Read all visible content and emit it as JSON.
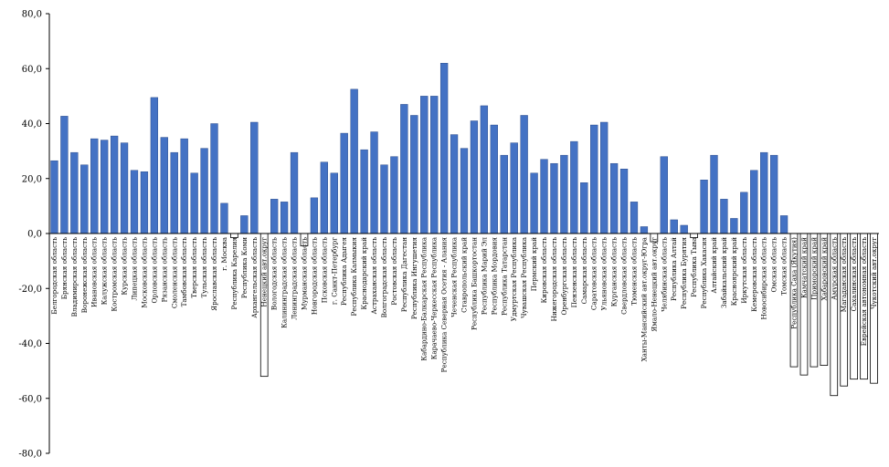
{
  "chart_data": {
    "type": "bar",
    "title": "",
    "xlabel": "",
    "ylabel": "",
    "ylim": [
      -80,
      80
    ],
    "yticks": [
      "80,0",
      "60,0",
      "40,0",
      "20,0",
      "0,0",
      "-20,0",
      "-40,0",
      "-60,0",
      "-80,0"
    ],
    "ytick_values": [
      80,
      60,
      40,
      20,
      0,
      -20,
      -40,
      -60,
      -80
    ],
    "grid": false,
    "bar_color": "#4472C4",
    "bar_border_color": "#1F3D7A",
    "categories": [
      "Белгородская область",
      "Брянская область",
      "Владимирская область",
      "Воронежская область",
      "Ивановская область",
      "Калужская область",
      "Костромская область",
      "Курская область",
      "Липецкая область",
      "Московская область",
      "Орловская область",
      "Рязанская область",
      "Смоленская область",
      "Тамбовская область",
      "Тверская область",
      "Тульская область",
      "Ярославская область",
      "г. Москва",
      "Республика Карелия",
      "Республика Коми",
      "Архангельская область",
      "Ненецкий авт.округ",
      "Вологодская область",
      "Калининградская область",
      "Ленинградская область",
      "Мурманская область",
      "Новгородская область",
      "Псковская область",
      "г. Санкт-Петербург",
      "Республика Адыгея",
      "Республика Калмыкия",
      "Краснодарский край",
      "Астраханская область",
      "Волгоградская область",
      "Ростовская область",
      "Республика Дагестан",
      "Республика Ингушетия",
      "Кабардино-Балкарская Республика",
      "Карачаево-Черкесская Республика",
      "Республика Северная Осетия - Алания",
      "Чеченская Республика",
      "Ставропольский край",
      "Республика Башкортостан",
      "Республика Марий Эл",
      "Республика Мордовия",
      "Республика Татарстан",
      "Удмуртская Республика",
      "Чувашская Республика",
      "Пермский край",
      "Кировская область",
      "Нижегородская область",
      "Оренбургская область",
      "Пензенская область",
      "Самарская область",
      "Саратовская область",
      "Ульяновская область",
      "Курганская область",
      "Свердловская область",
      "Тюменская область",
      "Ханты-Мансийский авт.округ-Югра",
      "Ямало-Ненецкий авт.округ",
      "Челябинская область",
      "Республика Алтай",
      "Республика Бурятия",
      "Республика Тыва",
      "Республика Хакасия",
      "Алтайский край",
      "Забайкальский край",
      "Красноярский край",
      "Иркутская область",
      "Кемеровская область",
      "Новосибирская область",
      "Омская область",
      "Томская область",
      "Республика Саха (Якутия)",
      "Камчатский край",
      "Приморский край",
      "Хабаровский край",
      "Амурская область",
      "Магаданская область",
      "Сахалинская область",
      "Еврейская автономная область",
      "Чукотский авт.округ"
    ],
    "values": [
      26.5,
      42.7,
      29.5,
      25.0,
      34.5,
      34.0,
      35.5,
      33.0,
      23.0,
      22.5,
      49.5,
      35.0,
      29.5,
      34.5,
      22.0,
      31.0,
      40.0,
      11.0,
      -1.5,
      6.5,
      40.5,
      -52.0,
      12.5,
      11.5,
      29.5,
      -4.5,
      13.0,
      26.0,
      22.0,
      36.5,
      52.5,
      30.5,
      37.0,
      25.0,
      28.0,
      47.0,
      43.0,
      50.0,
      50.0,
      62.0,
      36.0,
      31.0,
      41.0,
      46.5,
      39.5,
      28.5,
      33.0,
      43.0,
      22.0,
      27.0,
      25.5,
      28.5,
      33.5,
      18.5,
      39.5,
      40.5,
      25.5,
      23.5,
      11.5,
      2.5,
      -3.0,
      28.0,
      5.0,
      3.0,
      -1.5,
      19.5,
      28.5,
      12.5,
      5.5,
      15.0,
      23.0,
      29.5,
      28.5,
      6.5,
      -48.5,
      -51.5,
      -48.5,
      -48.0,
      -59.0,
      -55.5,
      -53.0,
      -53.0,
      -54.5
    ]
  }
}
